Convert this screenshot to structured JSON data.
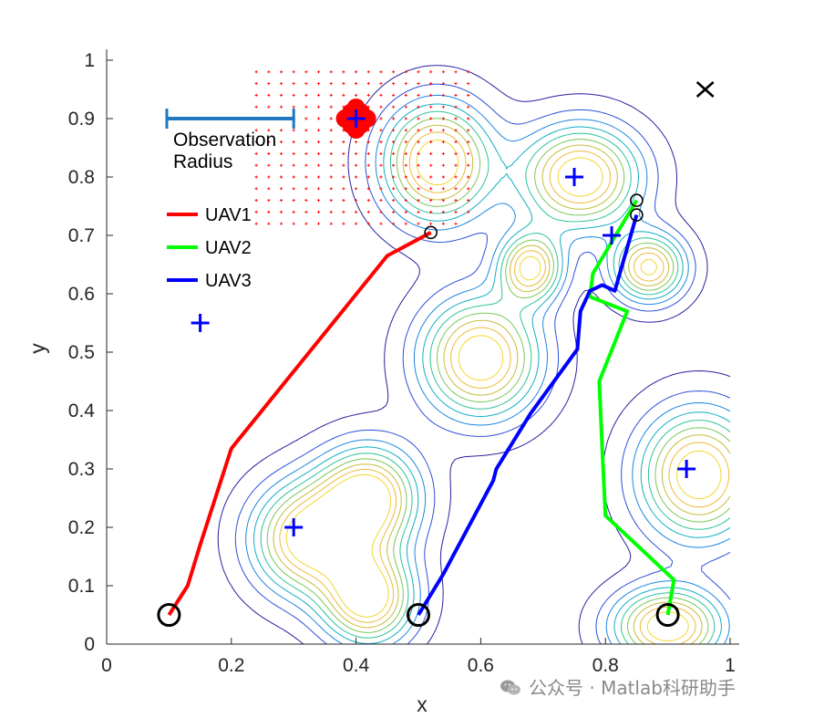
{
  "chart_data": {
    "type": "line",
    "xlabel": "x",
    "ylabel": "y",
    "xlim": [
      0,
      1
    ],
    "ylim": [
      0,
      1
    ],
    "xticks": [
      "0",
      "0.2",
      "0.4",
      "0.6",
      "0.8",
      "1"
    ],
    "yticks": [
      "0",
      "0.1",
      "0.2",
      "0.3",
      "0.4",
      "0.5",
      "0.6",
      "0.7",
      "0.8",
      "0.9",
      "1"
    ],
    "grid": false,
    "legend_position": "top-left",
    "series": [
      {
        "name": "UAV1",
        "color": "#ff0000",
        "x": [
          0.1,
          0.13,
          0.15,
          0.2,
          0.45,
          0.52
        ],
        "y": [
          0.05,
          0.1,
          0.17,
          0.335,
          0.665,
          0.705
        ]
      },
      {
        "name": "UAV2",
        "color": "#00ff00",
        "x": [
          0.9,
          0.91,
          0.8,
          0.795,
          0.79,
          0.835,
          0.775,
          0.78,
          0.85
        ],
        "y": [
          0.05,
          0.11,
          0.22,
          0.33,
          0.45,
          0.57,
          0.595,
          0.635,
          0.76
        ]
      },
      {
        "name": "UAV3",
        "color": "#0000ff",
        "x": [
          0.5,
          0.54,
          0.62,
          0.625,
          0.68,
          0.755,
          0.76,
          0.775,
          0.795,
          0.815,
          0.85
        ],
        "y": [
          0.05,
          0.12,
          0.28,
          0.3,
          0.395,
          0.505,
          0.57,
          0.605,
          0.615,
          0.605,
          0.735
        ]
      }
    ],
    "start_markers": [
      {
        "x": 0.1,
        "y": 0.05
      },
      {
        "x": 0.5,
        "y": 0.05
      },
      {
        "x": 0.9,
        "y": 0.05
      }
    ],
    "end_markers": [
      {
        "x": 0.52,
        "y": 0.705
      },
      {
        "x": 0.85,
        "y": 0.76
      },
      {
        "x": 0.85,
        "y": 0.735
      }
    ],
    "targets": [
      {
        "x": 0.4,
        "y": 0.9
      },
      {
        "x": 0.75,
        "y": 0.8
      },
      {
        "x": 0.81,
        "y": 0.7
      },
      {
        "x": 0.15,
        "y": 0.55
      },
      {
        "x": 0.3,
        "y": 0.2
      },
      {
        "x": 0.93,
        "y": 0.3
      }
    ],
    "cross_marker": {
      "x": 0.96,
      "y": 0.95
    },
    "red_region": {
      "x": [
        0.24,
        0.58
      ],
      "y": [
        0.72,
        0.99
      ],
      "step": 0.02
    },
    "blob_center": {
      "x": 0.4,
      "y": 0.9
    },
    "observation_radius": {
      "x1": 0.1,
      "x2": 0.3,
      "y": 0.9,
      "label_lines": [
        "Observation",
        "Radius"
      ]
    },
    "contour_peaks": [
      {
        "x": 0.53,
        "y": 0.825,
        "sx": 0.06,
        "sy": 0.07,
        "a": 1.0
      },
      {
        "x": 0.76,
        "y": 0.8,
        "sx": 0.065,
        "sy": 0.06,
        "a": 1.0
      },
      {
        "x": 0.68,
        "y": 0.645,
        "sx": 0.035,
        "sy": 0.04,
        "a": 0.9
      },
      {
        "x": 0.87,
        "y": 0.645,
        "sx": 0.04,
        "sy": 0.04,
        "a": 0.9
      },
      {
        "x": 0.6,
        "y": 0.49,
        "sx": 0.065,
        "sy": 0.07,
        "a": 1.0
      },
      {
        "x": 0.42,
        "y": 0.25,
        "sx": 0.055,
        "sy": 0.06,
        "a": 1.0
      },
      {
        "x": 0.32,
        "y": 0.18,
        "sx": 0.06,
        "sy": 0.065,
        "a": 0.95
      },
      {
        "x": 0.42,
        "y": 0.08,
        "sx": 0.05,
        "sy": 0.055,
        "a": 1.0
      },
      {
        "x": 0.95,
        "y": 0.29,
        "sx": 0.065,
        "sy": 0.075,
        "a": 1.0
      },
      {
        "x": 0.9,
        "y": 0.03,
        "sx": 0.06,
        "sy": 0.045,
        "a": 1.0
      }
    ],
    "contour_levels": [
      0.06,
      0.16,
      0.26,
      0.36,
      0.46,
      0.56,
      0.66,
      0.76,
      0.86
    ],
    "contour_colors": [
      "#2a1f9e",
      "#2e4fd9",
      "#1c86e0",
      "#10aec4",
      "#2cc39a",
      "#7ac758",
      "#c4bd38",
      "#f0b83a",
      "#f4d630"
    ]
  },
  "watermark": "公众号 · Matlab科研助手"
}
